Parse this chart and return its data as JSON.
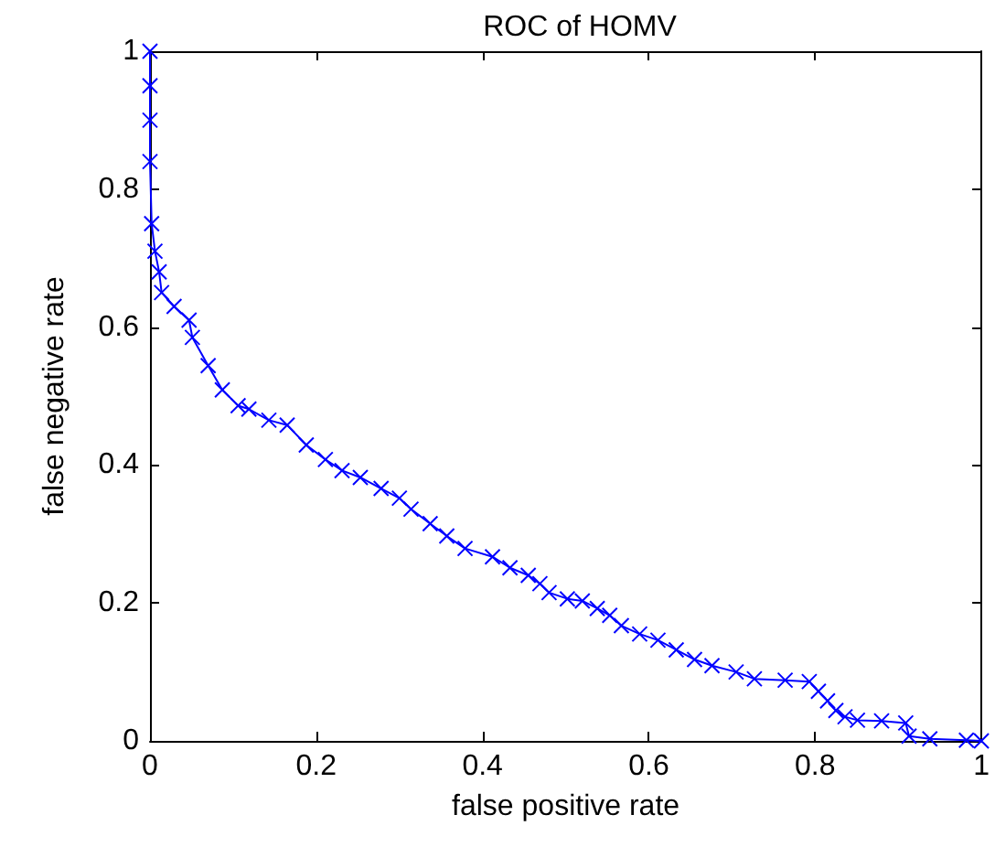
{
  "chart_data": {
    "type": "line",
    "title": "ROC of HOMV",
    "xlabel": "false positive rate",
    "ylabel": "false negative rate",
    "marker": "cross",
    "line_style": "solid",
    "grid": false,
    "xlim": [
      0,
      1
    ],
    "ylim": [
      0,
      1
    ],
    "xticks": [
      0,
      0.2,
      0.4,
      0.6,
      0.8,
      1
    ],
    "yticks": [
      0,
      0.2,
      0.4,
      0.6,
      0.8,
      1
    ],
    "series": [
      {
        "color": "#0000ff",
        "x": [
          0,
          0,
          0,
          0,
          0.002,
          0.006,
          0.011,
          0.014,
          0.029,
          0.047,
          0.051,
          0.07,
          0.087,
          0.106,
          0.119,
          0.143,
          0.165,
          0.188,
          0.211,
          0.231,
          0.253,
          0.278,
          0.3,
          0.314,
          0.337,
          0.357,
          0.379,
          0.412,
          0.433,
          0.455,
          0.469,
          0.48,
          0.502,
          0.52,
          0.538,
          0.553,
          0.567,
          0.589,
          0.611,
          0.633,
          0.655,
          0.676,
          0.705,
          0.727,
          0.764,
          0.793,
          0.804,
          0.815,
          0.825,
          0.836,
          0.851,
          0.88,
          0.909,
          0.913,
          0.938,
          0.982,
          1
        ],
        "values": [
          1,
          0.95,
          0.9,
          0.84,
          0.75,
          0.71,
          0.68,
          0.65,
          0.63,
          0.61,
          0.585,
          0.544,
          0.509,
          0.486,
          0.481,
          0.465,
          0.458,
          0.429,
          0.408,
          0.392,
          0.382,
          0.366,
          0.352,
          0.336,
          0.315,
          0.297,
          0.279,
          0.267,
          0.251,
          0.24,
          0.228,
          0.215,
          0.206,
          0.203,
          0.192,
          0.182,
          0.167,
          0.155,
          0.146,
          0.132,
          0.118,
          0.109,
          0.1,
          0.09,
          0.088,
          0.086,
          0.072,
          0.058,
          0.044,
          0.035,
          0.03,
          0.029,
          0.026,
          0.007,
          0.003,
          0.001,
          0
        ]
      }
    ]
  }
}
